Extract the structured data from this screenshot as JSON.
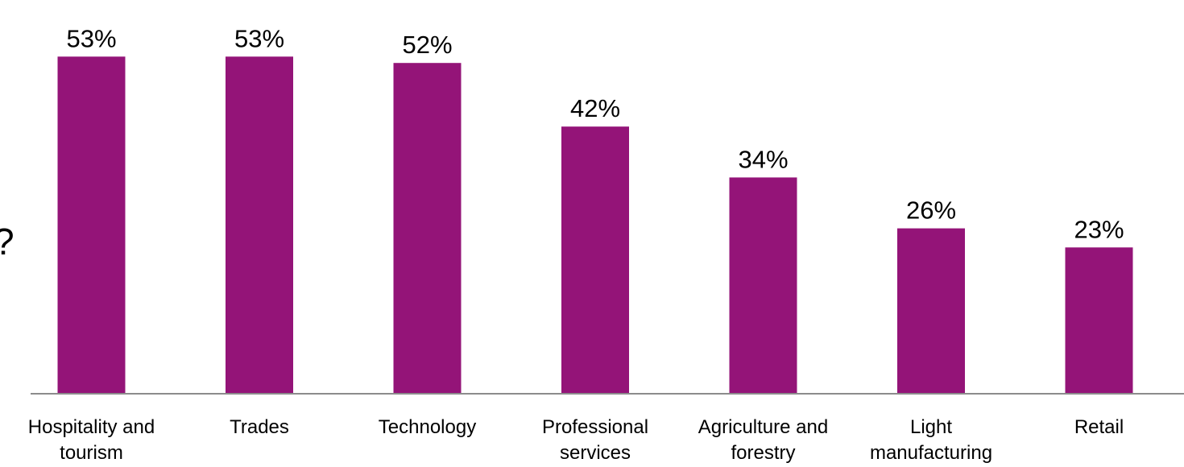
{
  "chart_data": {
    "type": "bar",
    "categories": [
      [
        "Hospitality and",
        "tourism"
      ],
      [
        "Trades"
      ],
      [
        "Technology"
      ],
      [
        "Professional",
        "services"
      ],
      [
        "Agriculture and",
        "forestry"
      ],
      [
        "Light",
        "manufacturing"
      ],
      [
        "Retail"
      ]
    ],
    "values": [
      53,
      53,
      52,
      42,
      34,
      26,
      23
    ],
    "value_labels": [
      "53%",
      "53%",
      "52%",
      "42%",
      "34%",
      "26%",
      "23%"
    ],
    "ylim": [
      0,
      60
    ],
    "grid": false,
    "legend": "none",
    "bar_color": "#941478",
    "axis_color": "#8c8c8c"
  },
  "fragment": {
    "left_edge_text": "?"
  }
}
